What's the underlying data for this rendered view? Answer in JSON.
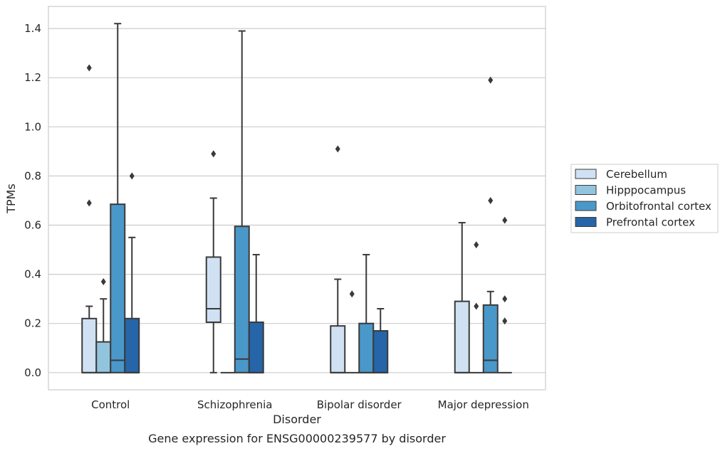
{
  "chart_data": {
    "type": "box",
    "caption": "Gene expression for ENSG00000239577 by disorder",
    "xlabel": "Disorder",
    "ylabel": "TPMs",
    "ylim": [
      -0.07,
      1.49
    ],
    "yticks": [
      0.0,
      0.2,
      0.4,
      0.6,
      0.8,
      1.0,
      1.2,
      1.4
    ],
    "ytick_labels": [
      "0.0",
      "0.2",
      "0.4",
      "0.6",
      "0.8",
      "1.0",
      "1.2",
      "1.4"
    ],
    "grid": "y",
    "categories": [
      "Control",
      "Schizophrenia",
      "Bipolar disorder",
      "Major depression"
    ],
    "legend": {
      "position": "right"
    },
    "series": [
      {
        "name": "Cerebellum",
        "color": "#cfe1f2",
        "boxes": [
          {
            "category": "Control",
            "whisker_low": 0.0,
            "q1": 0.0,
            "median": 0.0,
            "q3": 0.22,
            "whisker_high": 0.27,
            "outliers": [
              0.69,
              1.24
            ]
          },
          {
            "category": "Schizophrenia",
            "whisker_low": 0.0,
            "q1": 0.205,
            "median": 0.26,
            "q3": 0.47,
            "whisker_high": 0.71,
            "outliers": [
              0.89
            ]
          },
          {
            "category": "Bipolar disorder",
            "whisker_low": 0.0,
            "q1": 0.0,
            "median": 0.0,
            "q3": 0.19,
            "whisker_high": 0.38,
            "outliers": [
              0.91
            ]
          },
          {
            "category": "Major depression",
            "whisker_low": 0.0,
            "q1": 0.0,
            "median": 0.0,
            "q3": 0.29,
            "whisker_high": 0.61,
            "outliers": []
          }
        ]
      },
      {
        "name": "Hipppocampus",
        "color": "#93c4de",
        "boxes": [
          {
            "category": "Control",
            "whisker_low": 0.0,
            "q1": 0.0,
            "median": 0.0,
            "q3": 0.125,
            "whisker_high": 0.3,
            "outliers": [
              0.37
            ]
          },
          {
            "category": "Schizophrenia",
            "whisker_low": 0.0,
            "q1": 0.0,
            "median": 0.0,
            "q3": 0.0,
            "whisker_high": 0.0,
            "outliers": []
          },
          {
            "category": "Bipolar disorder",
            "whisker_low": 0.0,
            "q1": 0.0,
            "median": 0.0,
            "q3": 0.0,
            "whisker_high": 0.0,
            "outliers": [
              0.32
            ]
          },
          {
            "category": "Major depression",
            "whisker_low": 0.0,
            "q1": 0.0,
            "median": 0.0,
            "q3": 0.0,
            "whisker_high": 0.0,
            "outliers": [
              0.27,
              0.52
            ]
          }
        ]
      },
      {
        "name": "Orbitofrontal cortex",
        "color": "#4a98c9",
        "boxes": [
          {
            "category": "Control",
            "whisker_low": 0.0,
            "q1": 0.0,
            "median": 0.05,
            "q3": 0.685,
            "whisker_high": 1.42,
            "outliers": []
          },
          {
            "category": "Schizophrenia",
            "whisker_low": 0.0,
            "q1": 0.0,
            "median": 0.055,
            "q3": 0.595,
            "whisker_high": 1.39,
            "outliers": []
          },
          {
            "category": "Bipolar disorder",
            "whisker_low": 0.0,
            "q1": 0.0,
            "median": 0.0,
            "q3": 0.2,
            "whisker_high": 0.48,
            "outliers": []
          },
          {
            "category": "Major depression",
            "whisker_low": 0.0,
            "q1": 0.0,
            "median": 0.05,
            "q3": 0.275,
            "whisker_high": 0.33,
            "outliers": [
              0.7,
              1.19
            ]
          }
        ]
      },
      {
        "name": "Prefrontal cortex",
        "color": "#2565a8",
        "boxes": [
          {
            "category": "Control",
            "whisker_low": 0.0,
            "q1": 0.0,
            "median": 0.0,
            "q3": 0.22,
            "whisker_high": 0.55,
            "outliers": [
              0.8
            ]
          },
          {
            "category": "Schizophrenia",
            "whisker_low": 0.0,
            "q1": 0.0,
            "median": 0.0,
            "q3": 0.205,
            "whisker_high": 0.48,
            "outliers": []
          },
          {
            "category": "Bipolar disorder",
            "whisker_low": 0.0,
            "q1": 0.0,
            "median": 0.0,
            "q3": 0.17,
            "whisker_high": 0.26,
            "outliers": []
          },
          {
            "category": "Major depression",
            "whisker_low": 0.0,
            "q1": 0.0,
            "median": 0.0,
            "q3": 0.0,
            "whisker_high": 0.0,
            "outliers": [
              0.21,
              0.3,
              0.62
            ]
          }
        ]
      }
    ]
  }
}
